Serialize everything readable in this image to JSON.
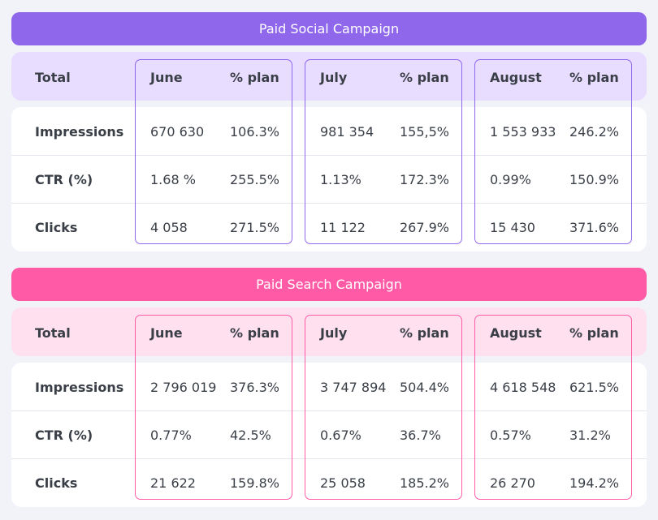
{
  "colors": {
    "social_accent": "#8f67ea",
    "social_header_bg": "#e8dcff",
    "search_accent": "#ff5aa6",
    "search_header_bg": "#ffe0ee"
  },
  "sections": [
    {
      "title": "Paid Social Campaign",
      "total_label": "Total",
      "plan_label": "% plan",
      "months": [
        "June",
        "July",
        "August"
      ],
      "rows": [
        {
          "label": "Impressions",
          "cells": [
            [
              "670 630",
              "106.3%"
            ],
            [
              "981 354",
              "155,5%"
            ],
            [
              "1 553 933",
              "246.2%"
            ]
          ]
        },
        {
          "label": "CTR (%)",
          "cells": [
            [
              "1.68 %",
              "255.5%"
            ],
            [
              "1.13%",
              "172.3%"
            ],
            [
              "0.99%",
              "150.9%"
            ]
          ]
        },
        {
          "label": "Clicks",
          "cells": [
            [
              "4 058",
              "271.5%"
            ],
            [
              "11 122",
              "267.9%"
            ],
            [
              "15 430",
              "371.6%"
            ]
          ]
        }
      ]
    },
    {
      "title": "Paid Search Campaign",
      "total_label": "Total",
      "plan_label": "% plan",
      "months": [
        "June",
        "July",
        "August"
      ],
      "rows": [
        {
          "label": "Impressions",
          "cells": [
            [
              "2 796 019",
              "376.3%"
            ],
            [
              "3 747 894",
              "504.4%"
            ],
            [
              "4 618 548",
              "621.5%"
            ]
          ]
        },
        {
          "label": "CTR (%)",
          "cells": [
            [
              "0.77%",
              "42.5%"
            ],
            [
              "0.67%",
              "36.7%"
            ],
            [
              "0.57%",
              "31.2%"
            ]
          ]
        },
        {
          "label": "Clicks",
          "cells": [
            [
              "21 622",
              "159.8%"
            ],
            [
              "25 058",
              "185.2%"
            ],
            [
              "26 270",
              "194.2%"
            ]
          ]
        }
      ]
    }
  ]
}
